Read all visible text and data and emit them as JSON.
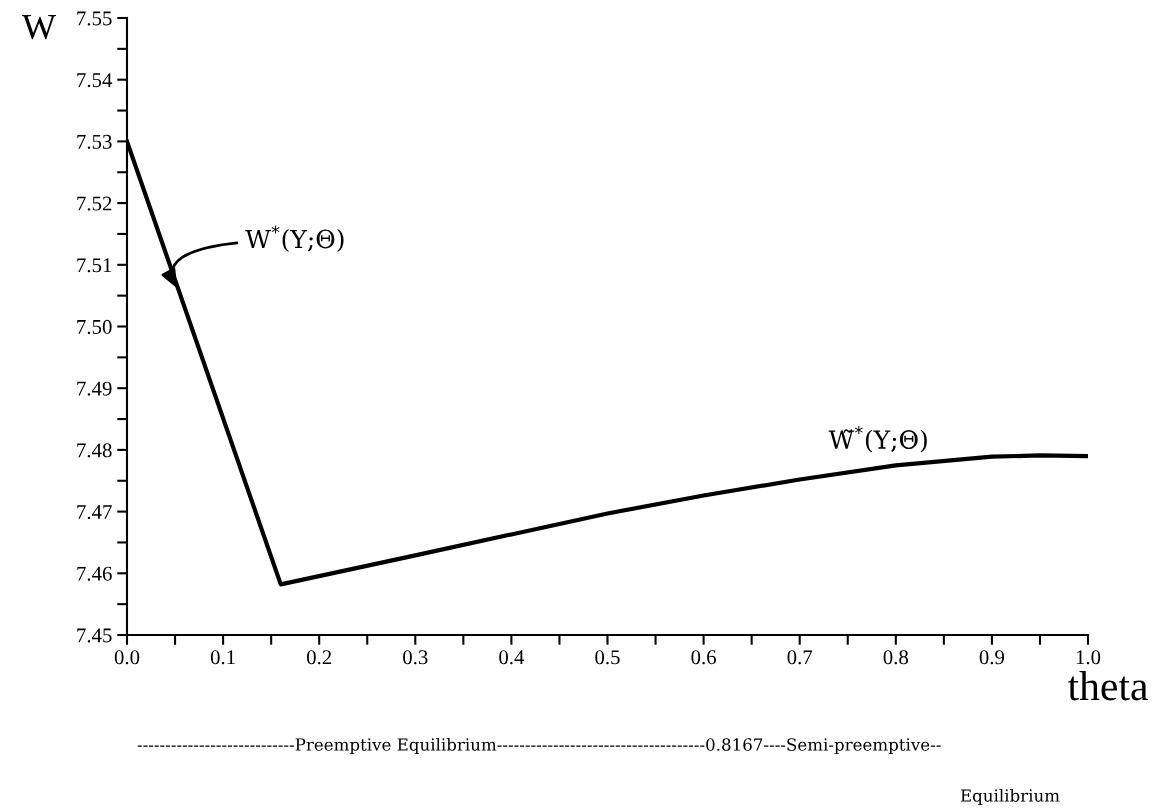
{
  "chart_data": {
    "type": "line",
    "xlabel": "theta",
    "ylabel": "W",
    "series": [
      {
        "color": "#000000",
        "x": [
          0,
          0.16,
          0.3,
          0.4,
          0.5,
          0.6,
          0.7,
          0.8,
          0.9,
          0.95,
          1.0
        ],
        "values": [
          7.53,
          7.4582,
          7.4629,
          7.4663,
          7.4697,
          7.4726,
          7.4752,
          7.4775,
          7.4789,
          7.4791,
          7.479
        ]
      }
    ],
    "xlim": [
      0,
      1.0
    ],
    "ylim": [
      7.45,
      7.55
    ],
    "xticks": [
      {
        "value": 0,
        "label": "0.0"
      },
      {
        "value": 0.05,
        "label": null
      },
      {
        "value": 0.1,
        "label": "0.1"
      },
      {
        "value": 0.15,
        "label": null
      },
      {
        "value": 0.2,
        "label": "0.2"
      },
      {
        "value": 0.25,
        "label": null
      },
      {
        "value": 0.3,
        "label": "0.3"
      },
      {
        "value": 0.35,
        "label": null
      },
      {
        "value": 0.4,
        "label": "0.4"
      },
      {
        "value": 0.45,
        "label": null
      },
      {
        "value": 0.5,
        "label": "0.5"
      },
      {
        "value": 0.55,
        "label": null
      },
      {
        "value": 0.6,
        "label": "0.6"
      },
      {
        "value": 0.65,
        "label": null
      },
      {
        "value": 0.7,
        "label": "0.7"
      },
      {
        "value": 0.75,
        "label": null
      },
      {
        "value": 0.8,
        "label": "0.8"
      },
      {
        "value": 0.85,
        "label": null
      },
      {
        "value": 0.9,
        "label": "0.9"
      },
      {
        "value": 0.95,
        "label": null
      },
      {
        "value": 1.0,
        "label": "1.0"
      }
    ],
    "yticks": [
      {
        "value": 7.45,
        "label": "7.45"
      },
      {
        "value": 7.455,
        "label": null
      },
      {
        "value": 7.46,
        "label": "7.46"
      },
      {
        "value": 7.465,
        "label": null
      },
      {
        "value": 7.47,
        "label": "7.47"
      },
      {
        "value": 7.475,
        "label": null
      },
      {
        "value": 7.48,
        "label": "7.48"
      },
      {
        "value": 7.485,
        "label": null
      },
      {
        "value": 7.49,
        "label": "7.49"
      },
      {
        "value": 7.495,
        "label": null
      },
      {
        "value": 7.5,
        "label": "7.50"
      },
      {
        "value": 7.505,
        "label": null
      },
      {
        "value": 7.51,
        "label": "7.51"
      },
      {
        "value": 7.515,
        "label": null
      },
      {
        "value": 7.52,
        "label": "7.52"
      },
      {
        "value": 7.525,
        "label": null
      },
      {
        "value": 7.53,
        "label": "7.53"
      },
      {
        "value": 7.535,
        "label": null
      },
      {
        "value": 7.54,
        "label": "7.54"
      },
      {
        "value": 7.545,
        "label": null
      },
      {
        "value": 7.55,
        "label": "7.55"
      }
    ],
    "grid": false,
    "legend": false,
    "marker": "none",
    "line_style": "solid",
    "annotations": [
      {
        "text": "W$^{*}$(Y;Θ)",
        "x": 0.053,
        "y": 7.506
      },
      {
        "text": "W̃$^{*}$(Y;Θ)",
        "x": 0.8,
        "y": 7.4775
      },
      "----------------------------Preemptive Equilibrium-------------------------------------0.8167----Semi-preemptive--",
      "Equilibrium"
    ]
  }
}
